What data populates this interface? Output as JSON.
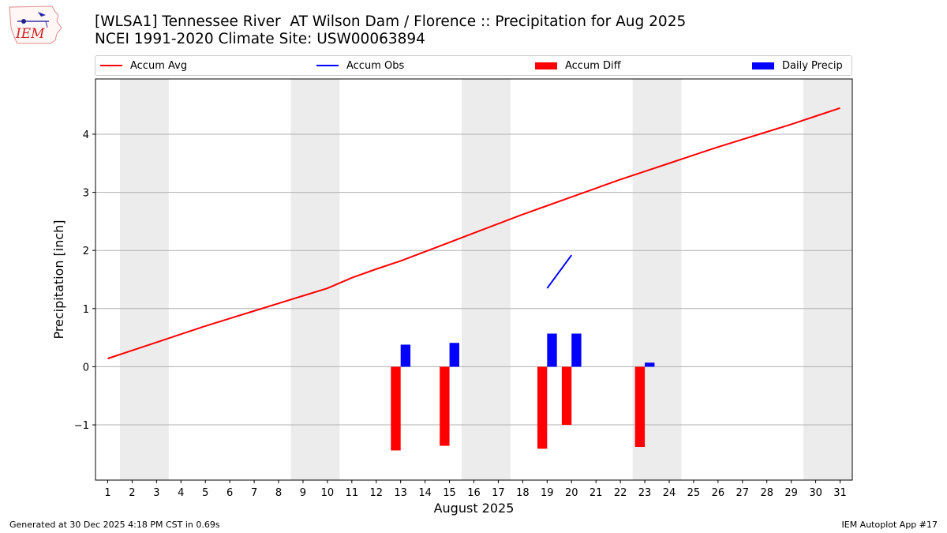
{
  "header": {
    "title_line1": "[WLSA1] Tennessee River  AT Wilson Dam / Florence :: Precipitation for Aug 2025",
    "title_line2": "NCEI 1991-2020 Climate Site: USW00063894",
    "logo_text": "IEM"
  },
  "legend": [
    {
      "label": "Accum Avg",
      "kind": "line",
      "color": "#ff0000"
    },
    {
      "label": "Accum Obs",
      "kind": "line",
      "color": "#0000ff"
    },
    {
      "label": "Accum Diff",
      "kind": "patch",
      "color": "#ff0000"
    },
    {
      "label": "Daily Precip",
      "kind": "patch",
      "color": "#0000ff"
    }
  ],
  "footer": {
    "left": "Generated at 30 Dec 2025 4:18 PM CST in 0.69s",
    "right": "IEM Autoplot App #17"
  },
  "chart_data": {
    "type": "bar",
    "xlabel": "August 2025",
    "ylabel": "Precipitation [inch]",
    "xlim": [
      0.5,
      31.5
    ],
    "ylim": [
      -1.95,
      4.95
    ],
    "x_ticks": [
      1,
      2,
      3,
      4,
      5,
      6,
      7,
      8,
      9,
      10,
      11,
      12,
      13,
      14,
      15,
      16,
      17,
      18,
      19,
      20,
      21,
      22,
      23,
      24,
      25,
      26,
      27,
      28,
      29,
      30,
      31
    ],
    "y_ticks": [
      -1,
      0,
      1,
      2,
      3,
      4
    ],
    "y_tick_labels": [
      "−1",
      "0",
      "1",
      "2",
      "3",
      "4"
    ],
    "grid": "horizontal",
    "weekend_bands": [
      [
        1.5,
        3.5
      ],
      [
        8.5,
        10.5
      ],
      [
        15.5,
        17.5
      ],
      [
        22.5,
        24.5
      ],
      [
        29.5,
        31.5
      ]
    ],
    "accum_avg": {
      "x": [
        1,
        2,
        3,
        4,
        5,
        6,
        7,
        8,
        9,
        10,
        11,
        12,
        13,
        14,
        15,
        16,
        17,
        18,
        19,
        20,
        21,
        22,
        23,
        24,
        25,
        26,
        27,
        28,
        29,
        30,
        31
      ],
      "values": [
        0.14,
        0.28,
        0.42,
        0.56,
        0.7,
        0.83,
        0.96,
        1.09,
        1.22,
        1.35,
        1.53,
        1.68,
        1.82,
        1.98,
        2.14,
        2.3,
        2.46,
        2.62,
        2.77,
        2.92,
        3.07,
        3.22,
        3.36,
        3.5,
        3.64,
        3.78,
        3.91,
        4.04,
        4.17,
        4.31,
        4.45
      ]
    },
    "accum_obs": {
      "x": [
        19,
        20
      ],
      "values": [
        1.35,
        1.92
      ]
    },
    "accum_diff": {
      "x": [
        13,
        15,
        19,
        20,
        23
      ],
      "values": [
        -1.44,
        -1.36,
        -1.41,
        -1.0,
        -1.38
      ]
    },
    "daily_precip": {
      "x": [
        13,
        15,
        19,
        20,
        23
      ],
      "values": [
        0.38,
        0.41,
        0.57,
        0.57,
        0.07
      ]
    },
    "colors": {
      "avg": "#ff0000",
      "obs": "#0000ff",
      "diff": "#ff0000",
      "precip": "#0000ff",
      "band": "#ececec",
      "grid": "#b0b0b0"
    }
  }
}
